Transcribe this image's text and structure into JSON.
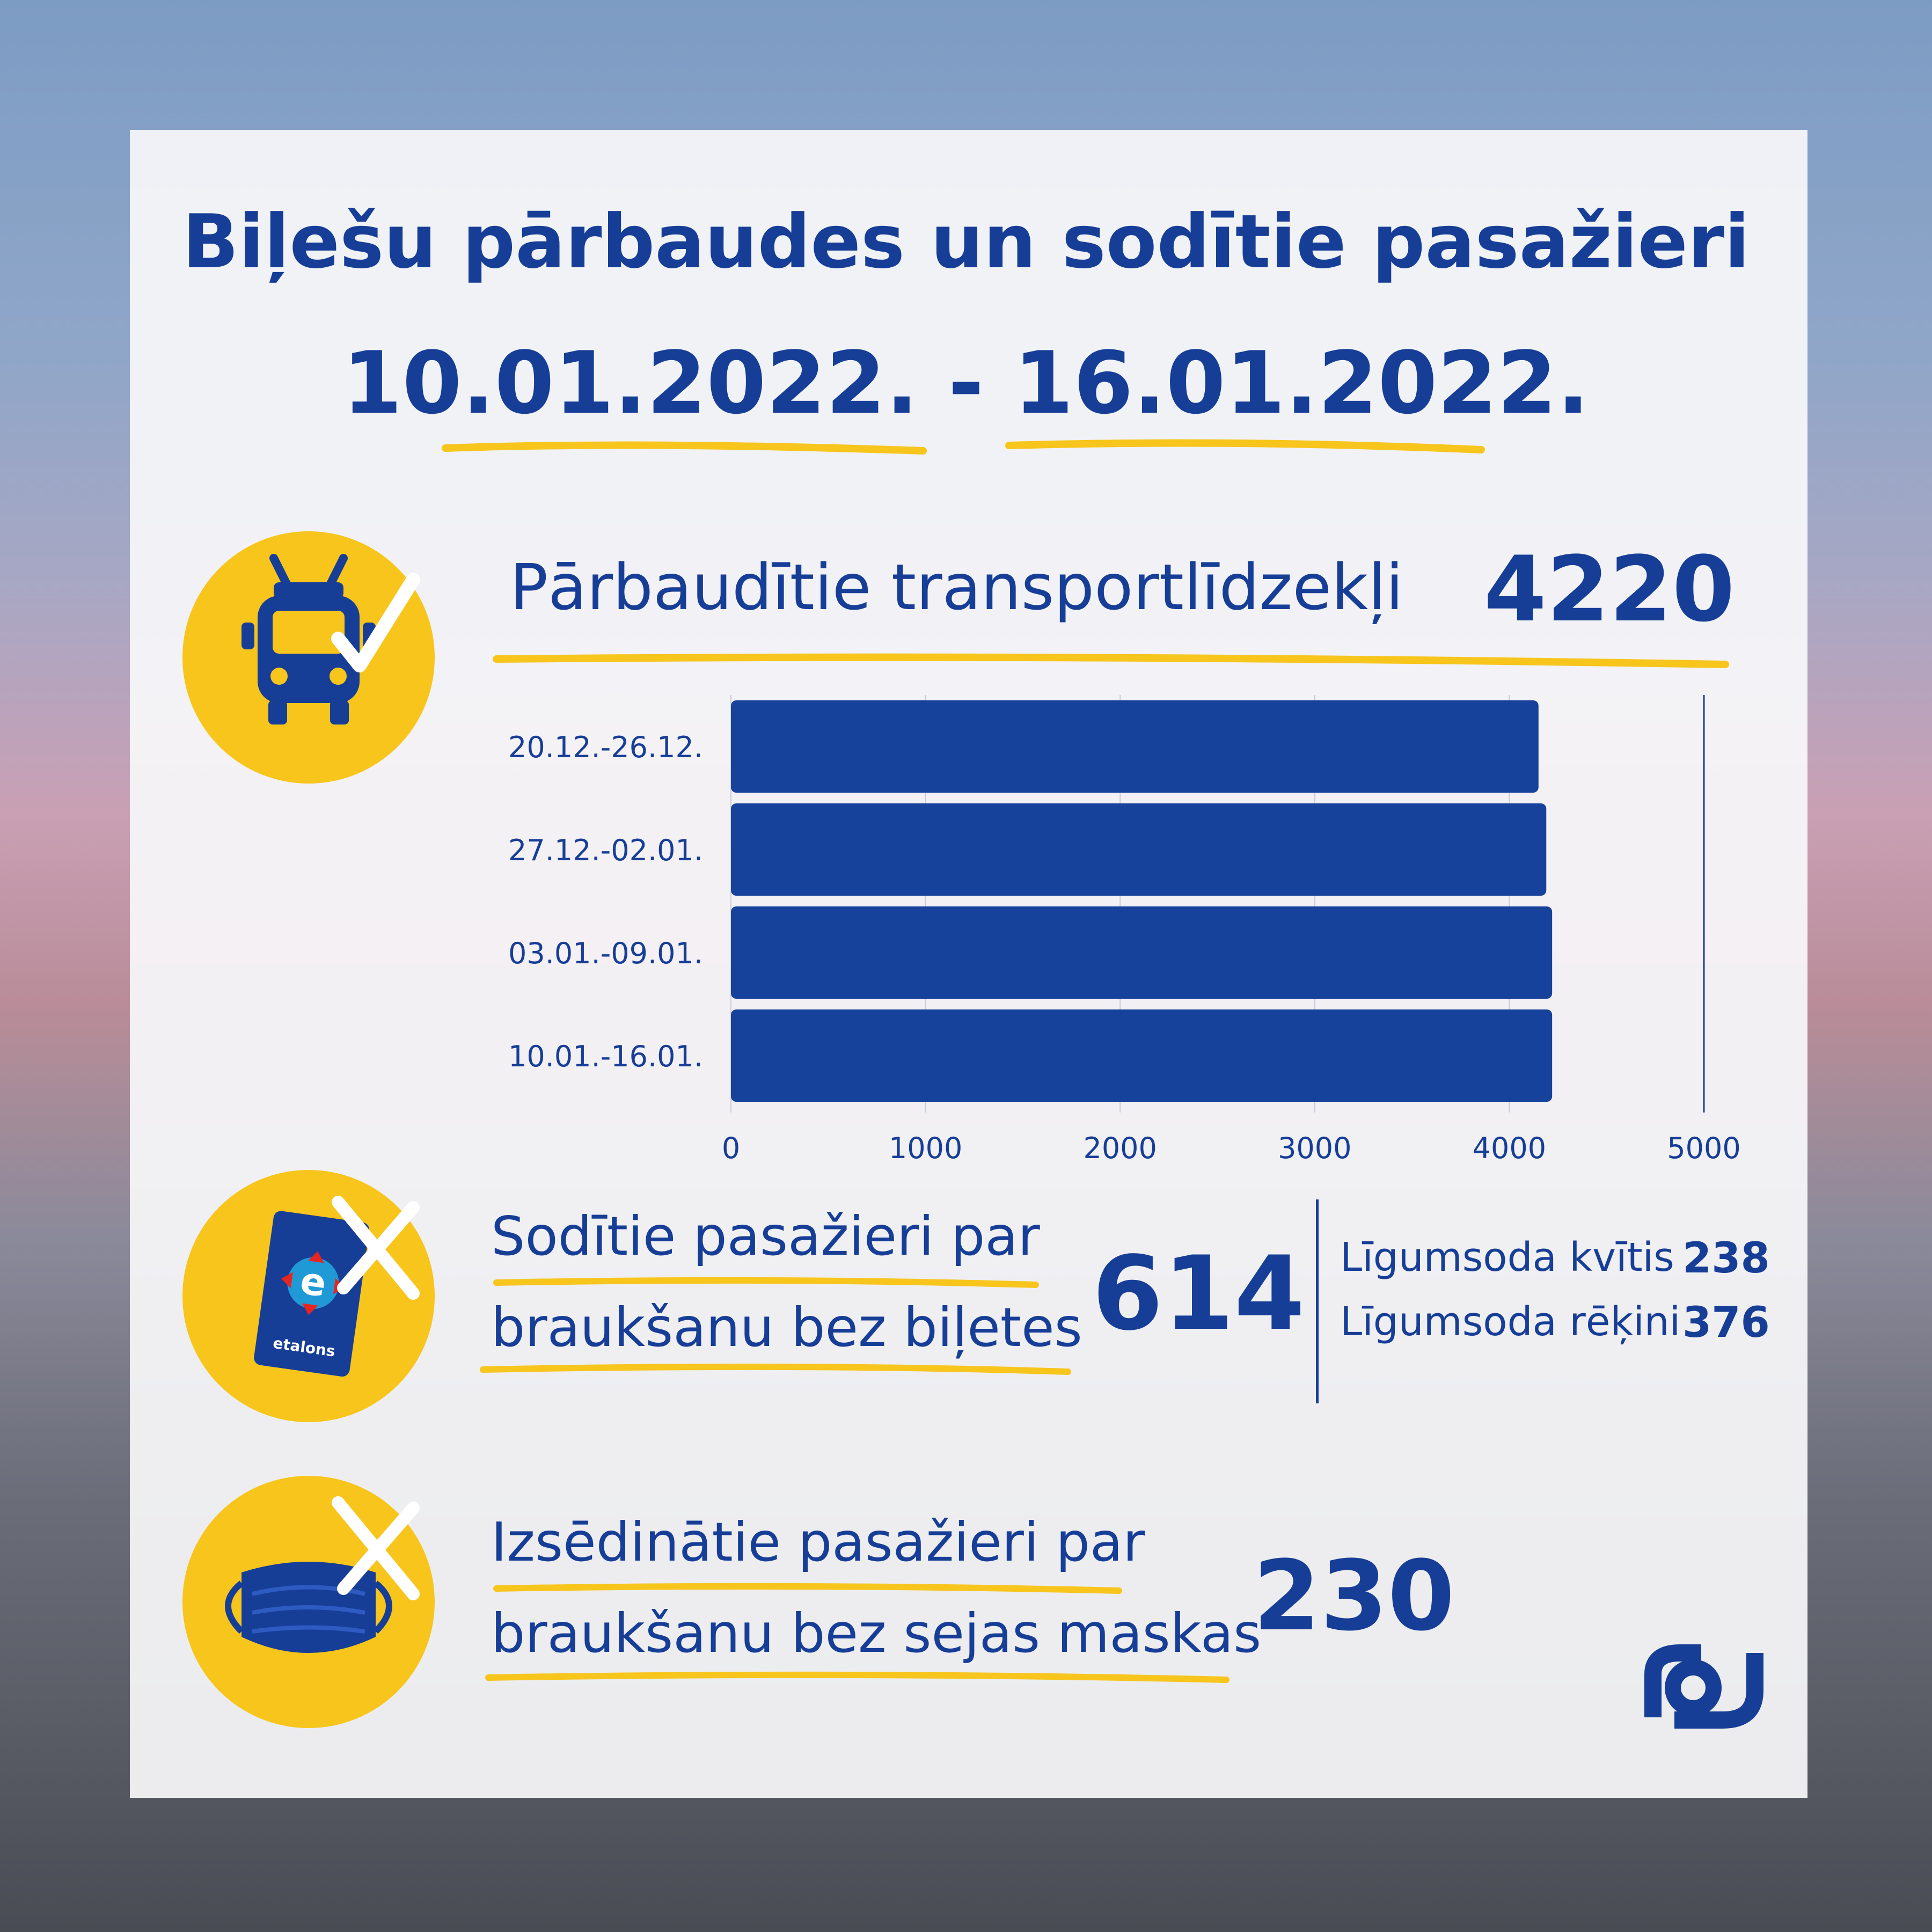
{
  "title": {
    "line1": "Biļešu pārbaudes un sodītie pasažieri",
    "line2": "10.01.2022. - 16.01.2022."
  },
  "vehicles": {
    "label": "Pārbaudītie transportlīdzekļi",
    "value": "4220",
    "icon": "trolleybus-check-icon"
  },
  "fined": {
    "label_line1": "Sodītie pasažieri par",
    "label_line2": "braukšanu bez biļetes",
    "value": "614",
    "icon": "etalons-card-cross-icon",
    "card_text": "etalons",
    "breakdown": [
      {
        "label": "Līgumsoda kvītis",
        "value": "238"
      },
      {
        "label": "Līgumsoda rēķini",
        "value": "376"
      }
    ]
  },
  "mask": {
    "label_line1": "Izsēdinātie pasažieri par",
    "label_line2": "braukšanu bez sejas maskas",
    "value": "230",
    "icon": "face-mask-cross-icon"
  },
  "logo": {
    "icon": "rigas-satiksme-logo"
  },
  "colors": {
    "accent": "#173e97",
    "highlight": "#f7c51b",
    "bar": "#17429b"
  },
  "chart_data": {
    "type": "bar",
    "orientation": "horizontal",
    "categories": [
      "20.12.-26.12.",
      "27.12.-02.01.",
      "03.01.-09.01.",
      "10.01.-16.01."
    ],
    "values": [
      4150,
      4190,
      4220,
      4220
    ],
    "xlim": [
      0,
      5000
    ],
    "xticks": [
      "0",
      "1000",
      "2000",
      "3000",
      "4000",
      "5000"
    ],
    "grid": true,
    "legend": "none"
  }
}
